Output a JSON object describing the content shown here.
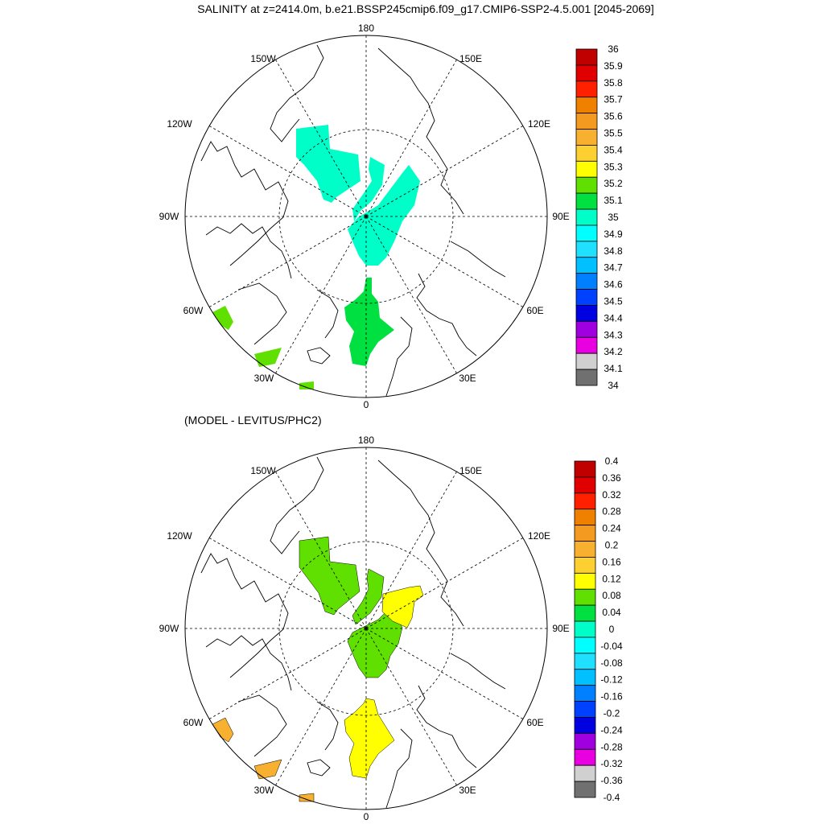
{
  "title": "SALINITY at z=2414.0m, b.e21.BSSP245cmip6.f09_g17.CMIP6-SSP2-4.5.001 [2045-2069]",
  "panels": [
    {
      "id": "top",
      "heading": "",
      "lon_labels": [
        "180",
        "150E",
        "120E",
        "90E",
        "60E",
        "30E",
        "0",
        "30W",
        "60W",
        "90W",
        "120W",
        "150W"
      ],
      "colorbar": {
        "labels": [
          "36",
          "35.9",
          "35.8",
          "35.7",
          "35.6",
          "35.5",
          "35.4",
          "35.3",
          "35.2",
          "35.1",
          "35",
          "34.9",
          "34.8",
          "34.7",
          "34.6",
          "34.5",
          "34.4",
          "34.3",
          "34.2",
          "34.1",
          "34"
        ],
        "colors": [
          "#c00000",
          "#e00000",
          "#ff2000",
          "#f08000",
          "#f59a20",
          "#f8b030",
          "#fcd030",
          "#ffff00",
          "#60e000",
          "#00e040",
          "#00ffc8",
          "#00ffff",
          "#20e0ff",
          "#00c0ff",
          "#0080ff",
          "#0040ff",
          "#0000e0",
          "#a000e0",
          "#e800e0",
          "#d0d0d0",
          "#707070"
        ]
      },
      "fields": [
        {
          "name": "teal-region-pacific",
          "color": "#00ffc8"
        },
        {
          "name": "teal-region-central",
          "color": "#00ffc8"
        },
        {
          "name": "green-region-fram",
          "color": "#00e040"
        },
        {
          "name": "light-green-region-atlantic",
          "color": "#60e000"
        }
      ]
    },
    {
      "id": "bottom",
      "heading": "(MODEL - LEVITUS/PHC2)",
      "lon_labels": [
        "180",
        "150E",
        "120E",
        "90E",
        "60E",
        "30E",
        "0",
        "30W",
        "60W",
        "90W",
        "120W",
        "150W"
      ],
      "colorbar": {
        "labels": [
          "0.4",
          "0.36",
          "0.32",
          "0.28",
          "0.24",
          "0.2",
          "0.16",
          "0.12",
          "0.08",
          "0.04",
          "0",
          "-0.04",
          "-0.08",
          "-0.12",
          "-0.16",
          "-0.2",
          "-0.24",
          "-0.28",
          "-0.32",
          "-0.36",
          "-0.4"
        ],
        "colors": [
          "#c00000",
          "#e00000",
          "#ff2000",
          "#f08000",
          "#f59a20",
          "#f8b030",
          "#fcd030",
          "#ffff00",
          "#60e000",
          "#00e040",
          "#00ffc8",
          "#00ffff",
          "#20e0ff",
          "#00c0ff",
          "#0080ff",
          "#0040ff",
          "#0000e0",
          "#a000e0",
          "#e800e0",
          "#d0d0d0",
          "#707070"
        ]
      },
      "fields": [
        {
          "name": "green-diff-pacific",
          "color": "#60e000"
        },
        {
          "name": "green-diff-central",
          "color": "#60e000"
        },
        {
          "name": "yellow-diff-region",
          "color": "#ffff00"
        },
        {
          "name": "orange-diff-atlantic",
          "color": "#f8b030"
        }
      ]
    }
  ]
}
